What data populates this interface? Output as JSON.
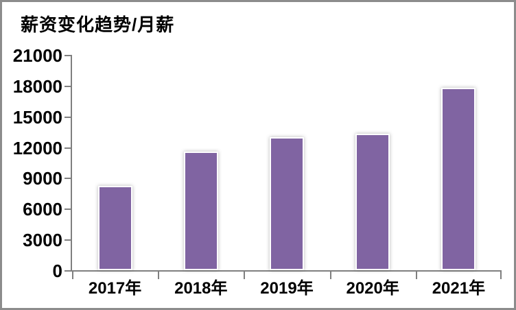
{
  "frame": {
    "background": "#ffffff",
    "border_color": "#8c8c8c"
  },
  "chart_data": {
    "type": "bar",
    "title": "薪资变化趋势/月薪",
    "categories": [
      "2017年",
      "2018年",
      "2019年",
      "2020年",
      "2021年"
    ],
    "values": [
      8200,
      11600,
      13000,
      13300,
      17800
    ],
    "xlabel": "",
    "ylabel": "",
    "ylim": [
      0,
      21000
    ],
    "ytick_step": 3000,
    "ytick_labels": [
      "0",
      "3000",
      "6000",
      "9000",
      "12000",
      "15000",
      "18000",
      "21000"
    ],
    "bar_color": "#8064A2",
    "bar_border_color": "#ffffff",
    "axis_color": "#7f7f7f",
    "text_color": "#000000",
    "grid": false,
    "legend_position": "none"
  }
}
